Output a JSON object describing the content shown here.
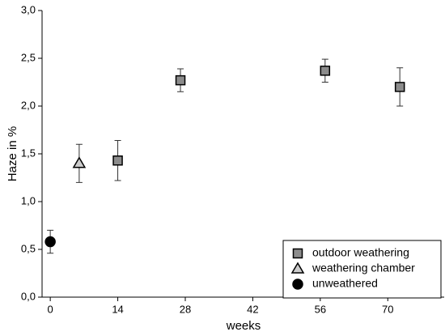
{
  "chart_data": {
    "type": "scatter",
    "x_label": "weeks",
    "y_label": "Haze in %",
    "xlim": [
      -1.7,
      81.7
    ],
    "ylim": [
      0,
      3
    ],
    "xticks": [
      0,
      14,
      28,
      42,
      56,
      70
    ],
    "yticks": [
      {
        "value": 0,
        "label": "0,0"
      },
      {
        "value": 0.5,
        "label": "0,5"
      },
      {
        "value": 1,
        "label": "1,0"
      },
      {
        "value": 1.5,
        "label": "1,5"
      },
      {
        "value": 2,
        "label": "2,0"
      },
      {
        "value": 2.5,
        "label": "2,5"
      },
      {
        "value": 3,
        "label": "3,0"
      }
    ],
    "legend": "lower right",
    "series": [
      {
        "name": "outdoor weathering",
        "color": "#8c8c8c",
        "marker": "square",
        "x": [
          14,
          27,
          57,
          72.5
        ],
        "values": [
          1.43,
          2.27,
          2.37,
          2.2
        ],
        "errors": [
          0.21,
          0.12,
          0.12,
          0.2
        ]
      },
      {
        "name": "weathering chamber",
        "color": "#cccccc",
        "marker": "triangle",
        "x": [
          6
        ],
        "values": [
          1.4
        ],
        "errors": [
          0.2
        ]
      },
      {
        "name": "unweathered",
        "color": "#000000",
        "marker": "circle",
        "x": [
          0
        ],
        "values": [
          0.58
        ],
        "errors": [
          0.12
        ]
      }
    ]
  }
}
